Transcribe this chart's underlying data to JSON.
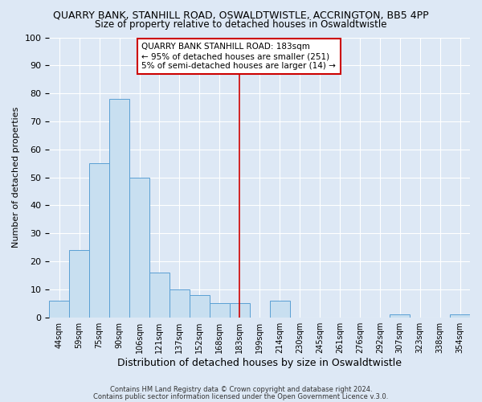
{
  "title_top": "QUARRY BANK, STANHILL ROAD, OSWALDTWISTLE, ACCRINGTON, BB5 4PP",
  "title_sub": "Size of property relative to detached houses in Oswaldtwistle",
  "xlabel": "Distribution of detached houses by size in Oswaldtwistle",
  "ylabel": "Number of detached properties",
  "bin_labels": [
    "44sqm",
    "59sqm",
    "75sqm",
    "90sqm",
    "106sqm",
    "121sqm",
    "137sqm",
    "152sqm",
    "168sqm",
    "183sqm",
    "199sqm",
    "214sqm",
    "230sqm",
    "245sqm",
    "261sqm",
    "276sqm",
    "292sqm",
    "307sqm",
    "323sqm",
    "338sqm",
    "354sqm"
  ],
  "bar_values": [
    6,
    24,
    55,
    78,
    50,
    16,
    10,
    8,
    5,
    5,
    0,
    6,
    0,
    0,
    0,
    0,
    0,
    1,
    0,
    0,
    1
  ],
  "bar_color": "#c8dff0",
  "bar_edge_color": "#5a9fd4",
  "vline_x_index": 9,
  "vline_color": "#cc0000",
  "annotation_title": "QUARRY BANK STANHILL ROAD: 183sqm",
  "annotation_line1": "← 95% of detached houses are smaller (251)",
  "annotation_line2": "5% of semi-detached houses are larger (14) →",
  "annotation_box_color": "#ffffff",
  "annotation_border_color": "#cc0000",
  "ylim": [
    0,
    100
  ],
  "footer1": "Contains HM Land Registry data © Crown copyright and database right 2024.",
  "footer2": "Contains public sector information licensed under the Open Government Licence v.3.0.",
  "background_color": "#dde8f5",
  "plot_background": "#dde8f5",
  "grid_color": "#ffffff"
}
